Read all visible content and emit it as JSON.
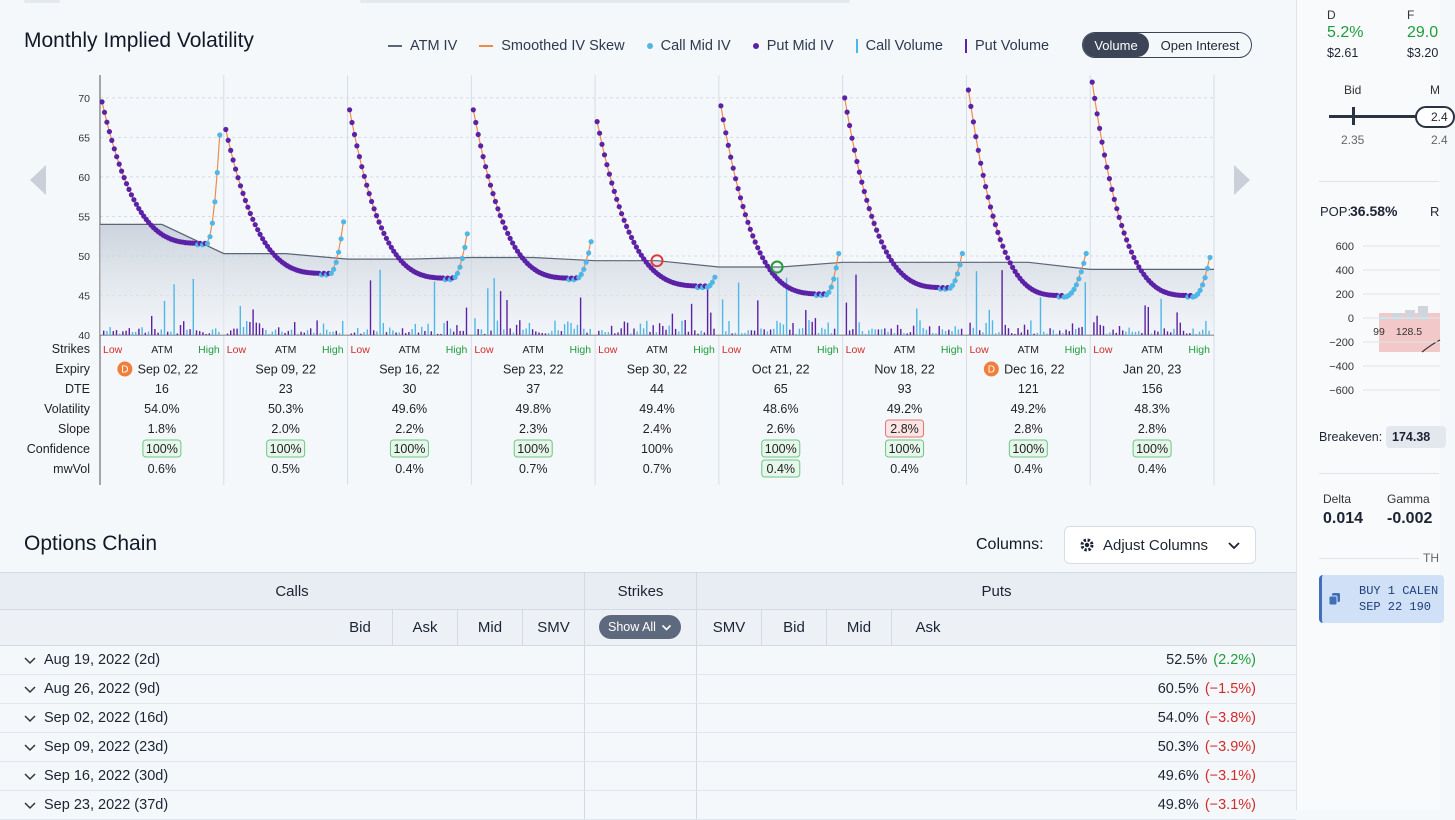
{
  "chart": {
    "title": "Monthly Implied Volatility",
    "legend": [
      {
        "label": "ATM IV",
        "kind": "line",
        "color": "#5a6577"
      },
      {
        "label": "Smoothed IV Skew",
        "kind": "line",
        "color": "#f08a4b"
      },
      {
        "label": "Call Mid IV",
        "kind": "dot",
        "color": "#4fb7e8"
      },
      {
        "label": "Put Mid IV",
        "kind": "dot",
        "color": "#5b21a6"
      },
      {
        "label": "Call Volume",
        "kind": "bar",
        "color": "#4fb7e8"
      },
      {
        "label": "Put Volume",
        "kind": "bar",
        "color": "#5b21a6"
      }
    ],
    "toggle": {
      "active": "Volume",
      "inactive": "Open Interest"
    }
  },
  "chart_data": {
    "type": "scatter",
    "ylim": [
      40,
      71
    ],
    "yticks": [
      40,
      45,
      50,
      55,
      60,
      65,
      70
    ],
    "atm_iv": [
      54.0,
      50.3,
      49.6,
      49.8,
      49.4,
      48.6,
      49.2,
      49.2,
      48.3
    ],
    "skew_curves": [
      {
        "expiry": "Sep 02, 22",
        "left": 69.5,
        "min": 51.6,
        "right": 65.5,
        "min_pos": 0.88
      },
      {
        "expiry": "Sep 09, 22",
        "left": 66.0,
        "min": 47.8,
        "right": 54.5,
        "min_pos": 0.87
      },
      {
        "expiry": "Sep 16, 22",
        "left": 68.5,
        "min": 47.2,
        "right": 53.0,
        "min_pos": 0.86
      },
      {
        "expiry": "Sep 23, 22",
        "left": 68.5,
        "min": 47.2,
        "right": 52.0,
        "min_pos": 0.86
      },
      {
        "expiry": "Sep 30, 22",
        "left": 67.0,
        "min": 46.2,
        "right": 47.5,
        "min_pos": 0.92
      },
      {
        "expiry": "Oct 21, 22",
        "left": 69.0,
        "min": 45.2,
        "right": 50.5,
        "min_pos": 0.88
      },
      {
        "expiry": "Nov 18, 22",
        "left": 70.0,
        "min": 46.0,
        "right": 50.5,
        "min_pos": 0.87
      },
      {
        "expiry": "Dec 16, 22",
        "left": 71.0,
        "min": 45.0,
        "right": 50.5,
        "min_pos": 0.81
      },
      {
        "expiry": "Jan 20, 23",
        "left": 72.0,
        "min": 45.0,
        "right": 50.0,
        "min_pos": 0.85
      }
    ]
  },
  "grid": {
    "row_labels": [
      "Strikes",
      "Expiry",
      "DTE",
      "Volatility",
      "Slope",
      "Confidence",
      "mwVol"
    ],
    "strike_labels": {
      "low": "Low",
      "atm": "ATM",
      "high": "High"
    },
    "columns": [
      {
        "expiry": "Sep 02, 22",
        "badge": "D",
        "dte": "16",
        "vol": "54.0%",
        "slope": "1.8%",
        "conf": "100%",
        "conf_box": true,
        "mw": "0.6%",
        "mw_box": false,
        "slope_box": false
      },
      {
        "expiry": "Sep 09, 22",
        "badge": "",
        "dte": "23",
        "vol": "50.3%",
        "slope": "2.0%",
        "conf": "100%",
        "conf_box": true,
        "mw": "0.5%",
        "mw_box": false,
        "slope_box": false
      },
      {
        "expiry": "Sep 16, 22",
        "badge": "",
        "dte": "30",
        "vol": "49.6%",
        "slope": "2.2%",
        "conf": "100%",
        "conf_box": true,
        "mw": "0.4%",
        "mw_box": false,
        "slope_box": false
      },
      {
        "expiry": "Sep 23, 22",
        "badge": "",
        "dte": "37",
        "vol": "49.8%",
        "slope": "2.3%",
        "conf": "100%",
        "conf_box": true,
        "mw": "0.7%",
        "mw_box": false,
        "slope_box": false
      },
      {
        "expiry": "Sep 30, 22",
        "badge": "",
        "dte": "44",
        "vol": "49.4%",
        "slope": "2.4%",
        "conf": "100%",
        "conf_box": false,
        "mw": "0.7%",
        "mw_box": false,
        "slope_box": false
      },
      {
        "expiry": "Oct 21, 22",
        "badge": "",
        "dte": "65",
        "vol": "48.6%",
        "slope": "2.6%",
        "conf": "100%",
        "conf_box": true,
        "mw": "0.4%",
        "mw_box": true,
        "slope_box": false
      },
      {
        "expiry": "Nov 18, 22",
        "badge": "",
        "dte": "93",
        "vol": "49.2%",
        "slope": "2.8%",
        "conf": "100%",
        "conf_box": true,
        "mw": "0.4%",
        "mw_box": false,
        "slope_box": true
      },
      {
        "expiry": "Dec 16, 22",
        "badge": "D",
        "dte": "121",
        "vol": "49.2%",
        "slope": "2.8%",
        "conf": "100%",
        "conf_box": true,
        "mw": "0.4%",
        "mw_box": false,
        "slope_box": false
      },
      {
        "expiry": "Jan 20, 23",
        "badge": "",
        "dte": "156",
        "vol": "48.3%",
        "slope": "2.8%",
        "conf": "100%",
        "conf_box": true,
        "mw": "0.4%",
        "mw_box": false,
        "slope_box": false
      }
    ]
  },
  "chain": {
    "title": "Options Chain",
    "columns_label": "Columns:",
    "adjust_label": "Adjust Columns",
    "header": {
      "calls": "Calls",
      "strikes": "Strikes",
      "puts": "Puts"
    },
    "call_cols": [
      "Bid",
      "Ask",
      "Mid",
      "SMV"
    ],
    "put_cols": [
      "SMV",
      "Bid",
      "Mid",
      "Ask"
    ],
    "show_all": "Show All",
    "rows": [
      {
        "label": "Aug 19, 2022 (2d)",
        "iv": "52.5%",
        "chg": "(2.2%)",
        "up": true
      },
      {
        "label": "Aug 26, 2022 (9d)",
        "iv": "60.5%",
        "chg": "(−1.5%)",
        "up": false
      },
      {
        "label": "Sep 02, 2022 (16d)",
        "iv": "54.0%",
        "chg": "(−3.8%)",
        "up": false
      },
      {
        "label": "Sep 09, 2022 (23d)",
        "iv": "50.3%",
        "chg": "(−3.9%)",
        "up": false
      },
      {
        "label": "Sep 16, 2022 (30d)",
        "iv": "49.6%",
        "chg": "(−3.1%)",
        "up": false
      },
      {
        "label": "Sep 23, 2022 (37d)",
        "iv": "49.8%",
        "chg": "(−3.1%)",
        "up": false
      }
    ]
  },
  "side": {
    "d_label": "D",
    "d_val": "5.2%",
    "d_sub": "$2.61",
    "f_label": "F",
    "f_val": "29.0",
    "f_sub": "$3.20",
    "bid_label": "Bid",
    "mid_label": "M",
    "bid_val": "2.35",
    "mid_val": "2.4",
    "mid_box": "2.4",
    "pop_label": "POP:",
    "pop_val": "36.58%",
    "r_label": "R",
    "pl_ticks": [
      "600",
      "400",
      "200",
      "0",
      "−200",
      "−400",
      "−600"
    ],
    "x_ticks": [
      "99",
      "128.5"
    ],
    "breakeven_label": "Breakeven:",
    "breakeven_val": "174.38",
    "delta_label": "Delta",
    "delta_val": "0.014",
    "gamma_label": "Gamma",
    "gamma_val": "-0.002",
    "th_label": "TH",
    "order_line1": "BUY 1 CALEN",
    "order_line2": "SEP 22 190 "
  }
}
